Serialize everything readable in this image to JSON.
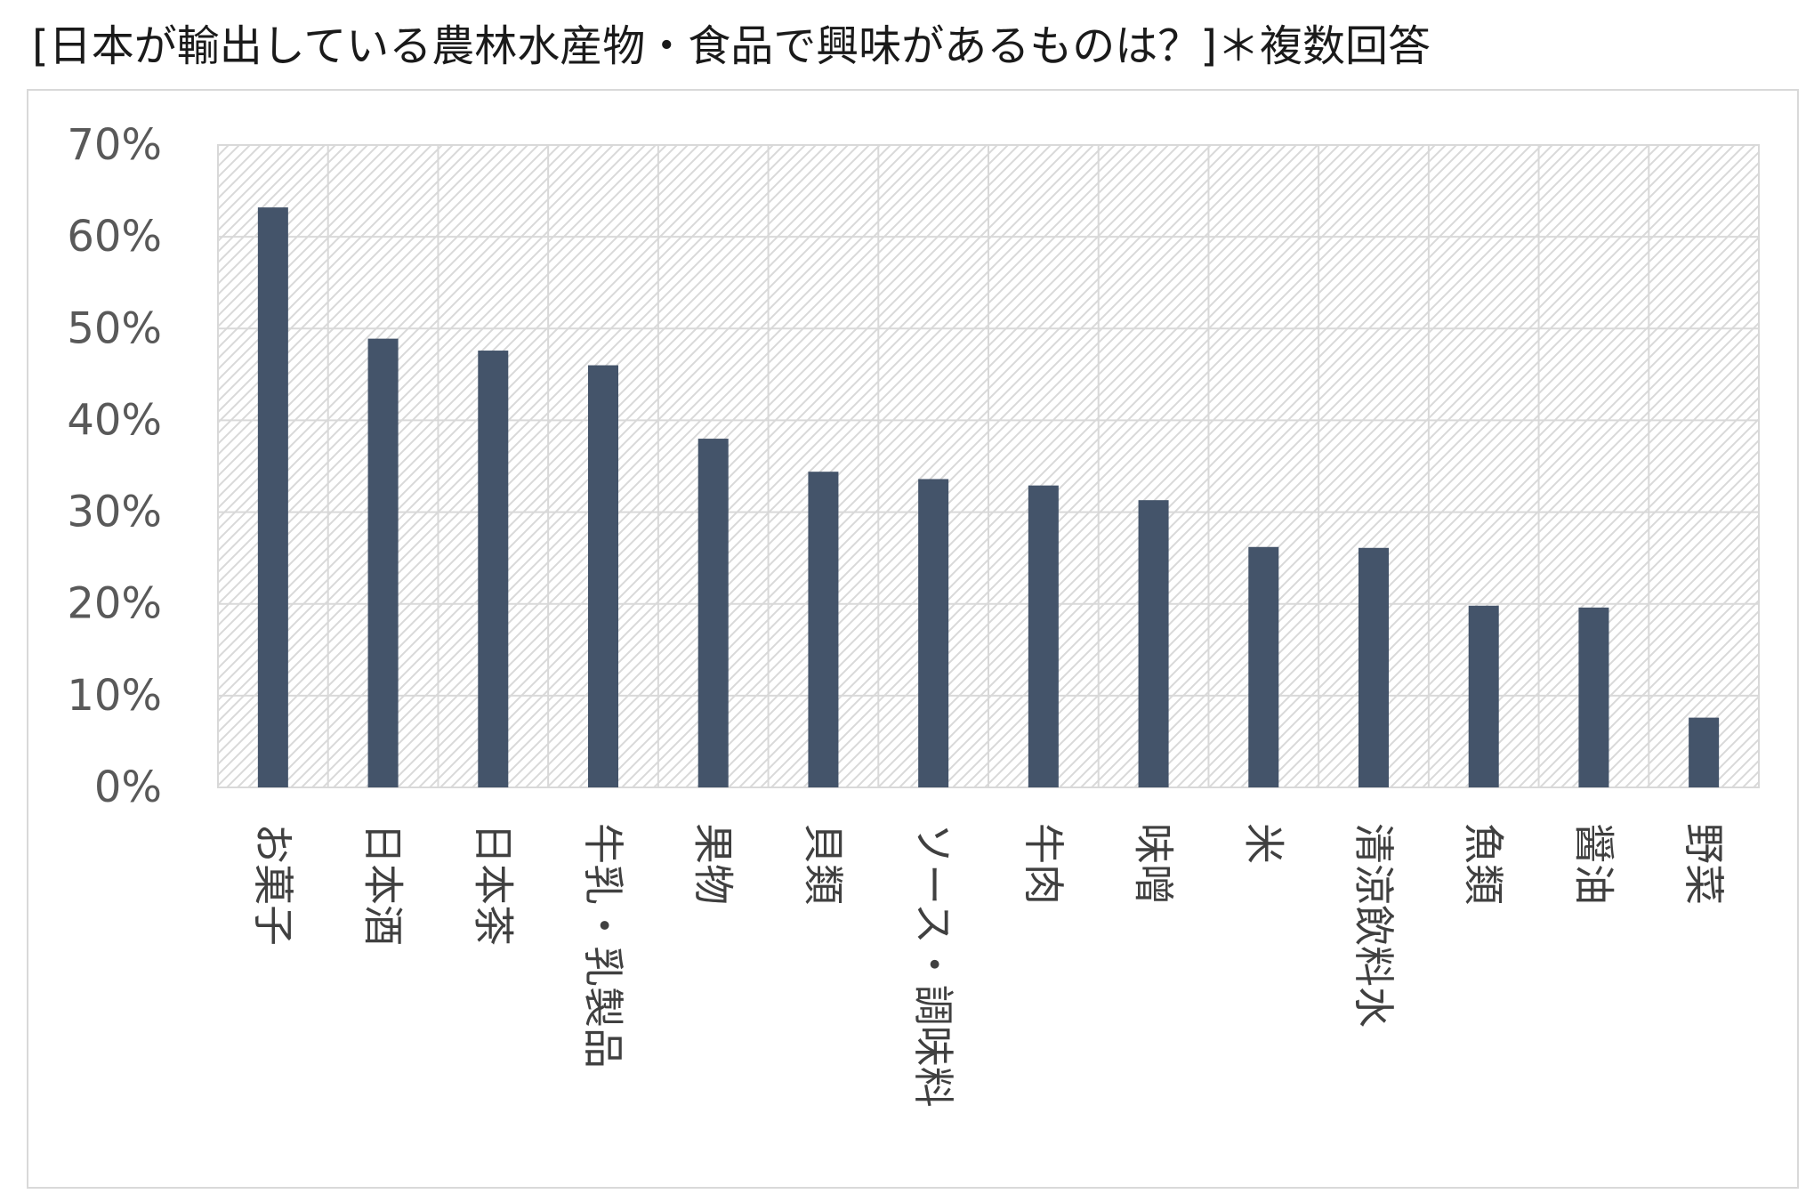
{
  "title": "[日本が輸出している農林水産物・食品で興味があるものは？]＊複数回答",
  "colors": {
    "bar": "#44546a",
    "gridline": "#d9d9d9",
    "hatch": "#d9d9d9",
    "axis_text": "#595959"
  },
  "chart_data": {
    "type": "bar",
    "title": "[日本が輸出している農林水産物・食品で興味があるものは？]＊複数回答",
    "xlabel": "",
    "ylabel": "",
    "categories": [
      "お菓子",
      "日本酒",
      "日本茶",
      "牛乳・乳製品",
      "果物",
      "貝類",
      "ソース・調味料",
      "牛肉",
      "味噌",
      "米",
      "清涼飲料水",
      "魚類",
      "醤油",
      "野菜"
    ],
    "values": [
      63.2,
      48.9,
      47.6,
      46.0,
      38.0,
      34.4,
      33.6,
      32.9,
      31.3,
      26.2,
      26.1,
      19.8,
      19.6,
      7.6
    ],
    "value_unit": "%",
    "ylim": [
      0,
      70
    ],
    "yticks": [
      "0%",
      "10%",
      "20%",
      "30%",
      "40%",
      "50%",
      "60%",
      "70%"
    ],
    "grid": true,
    "legend": "none"
  }
}
